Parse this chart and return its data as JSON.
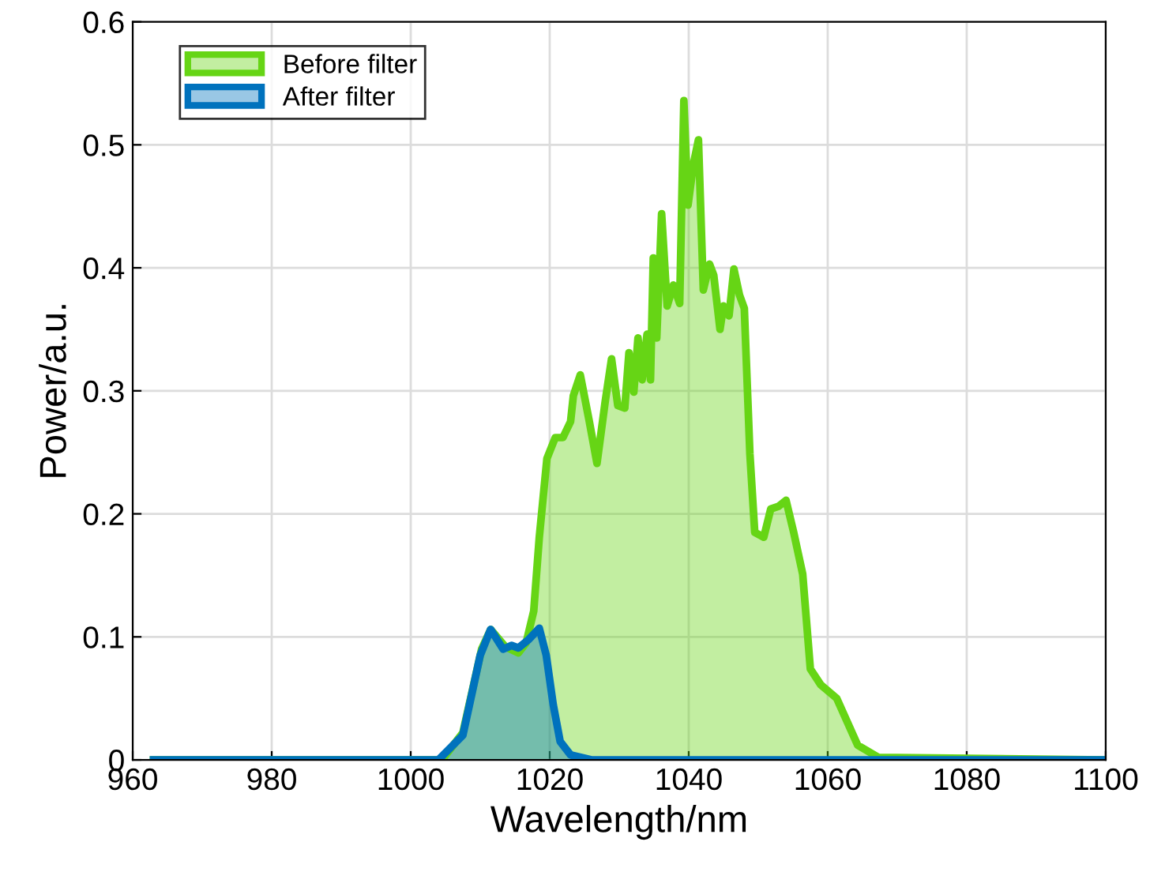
{
  "chart_data": {
    "type": "area",
    "xlabel": "Wavelength/nm",
    "ylabel": "Power/a.u.",
    "xlim": [
      960,
      1100
    ],
    "xticks": [
      960,
      980,
      1000,
      1020,
      1040,
      1060,
      1080,
      1100
    ],
    "ylim": [
      0,
      0.6
    ],
    "yticks": [
      0,
      0.1,
      0.2,
      0.3,
      0.4,
      0.5,
      0.6
    ],
    "grid": true,
    "legend": "top left",
    "series": [
      {
        "name": "Before filter",
        "color": "#66d515",
        "x": [
          963,
          1004.5,
          1007.5,
          1010.2,
          1011.5,
          1013.6,
          1015.5,
          1016.6,
          1017.7,
          1018.5,
          1019.6,
          1020.8,
          1021.9,
          1023,
          1023.4,
          1024.4,
          1025.7,
          1026.8,
          1028,
          1028.9,
          1029.8,
          1030.8,
          1031.4,
          1032.1,
          1032.7,
          1033.3,
          1034,
          1034.5,
          1034.9,
          1035.4,
          1036.1,
          1036.9,
          1037.8,
          1038.7,
          1039.3,
          1039.9,
          1040.7,
          1041.4,
          1042.1,
          1043,
          1043.6,
          1044.5,
          1045,
          1045.8,
          1046.5,
          1047.3,
          1048,
          1048.8,
          1049.5,
          1050.8,
          1051.8,
          1052.9,
          1054,
          1055.1,
          1056.4,
          1057.5,
          1059,
          1061.3,
          1062.8,
          1064.3,
          1067.3,
          1100
        ],
        "values": [
          0,
          0,
          0.022,
          0.09,
          0.106,
          0.092,
          0.087,
          0.095,
          0.121,
          0.181,
          0.245,
          0.262,
          0.262,
          0.275,
          0.296,
          0.313,
          0.275,
          0.241,
          0.292,
          0.326,
          0.288,
          0.286,
          0.331,
          0.299,
          0.343,
          0.309,
          0.346,
          0.309,
          0.408,
          0.343,
          0.444,
          0.369,
          0.386,
          0.371,
          0.536,
          0.451,
          0.485,
          0.504,
          0.382,
          0.403,
          0.394,
          0.35,
          0.369,
          0.361,
          0.399,
          0.378,
          0.367,
          0.249,
          0.185,
          0.181,
          0.204,
          0.206,
          0.211,
          0.185,
          0.151,
          0.074,
          0.061,
          0.05,
          0.031,
          0.012,
          0.002,
          0
        ]
      },
      {
        "name": "After filter",
        "color": "#0072bd",
        "x": [
          963,
          1004,
          1007.5,
          1010,
          1011.5,
          1013.3,
          1014.5,
          1015.5,
          1017,
          1018.5,
          1019.5,
          1020.5,
          1021.5,
          1023,
          1026,
          1100
        ],
        "values": [
          0,
          0,
          0.02,
          0.085,
          0.106,
          0.09,
          0.093,
          0.091,
          0.098,
          0.107,
          0.085,
          0.045,
          0.015,
          0.004,
          0,
          0
        ]
      }
    ]
  }
}
